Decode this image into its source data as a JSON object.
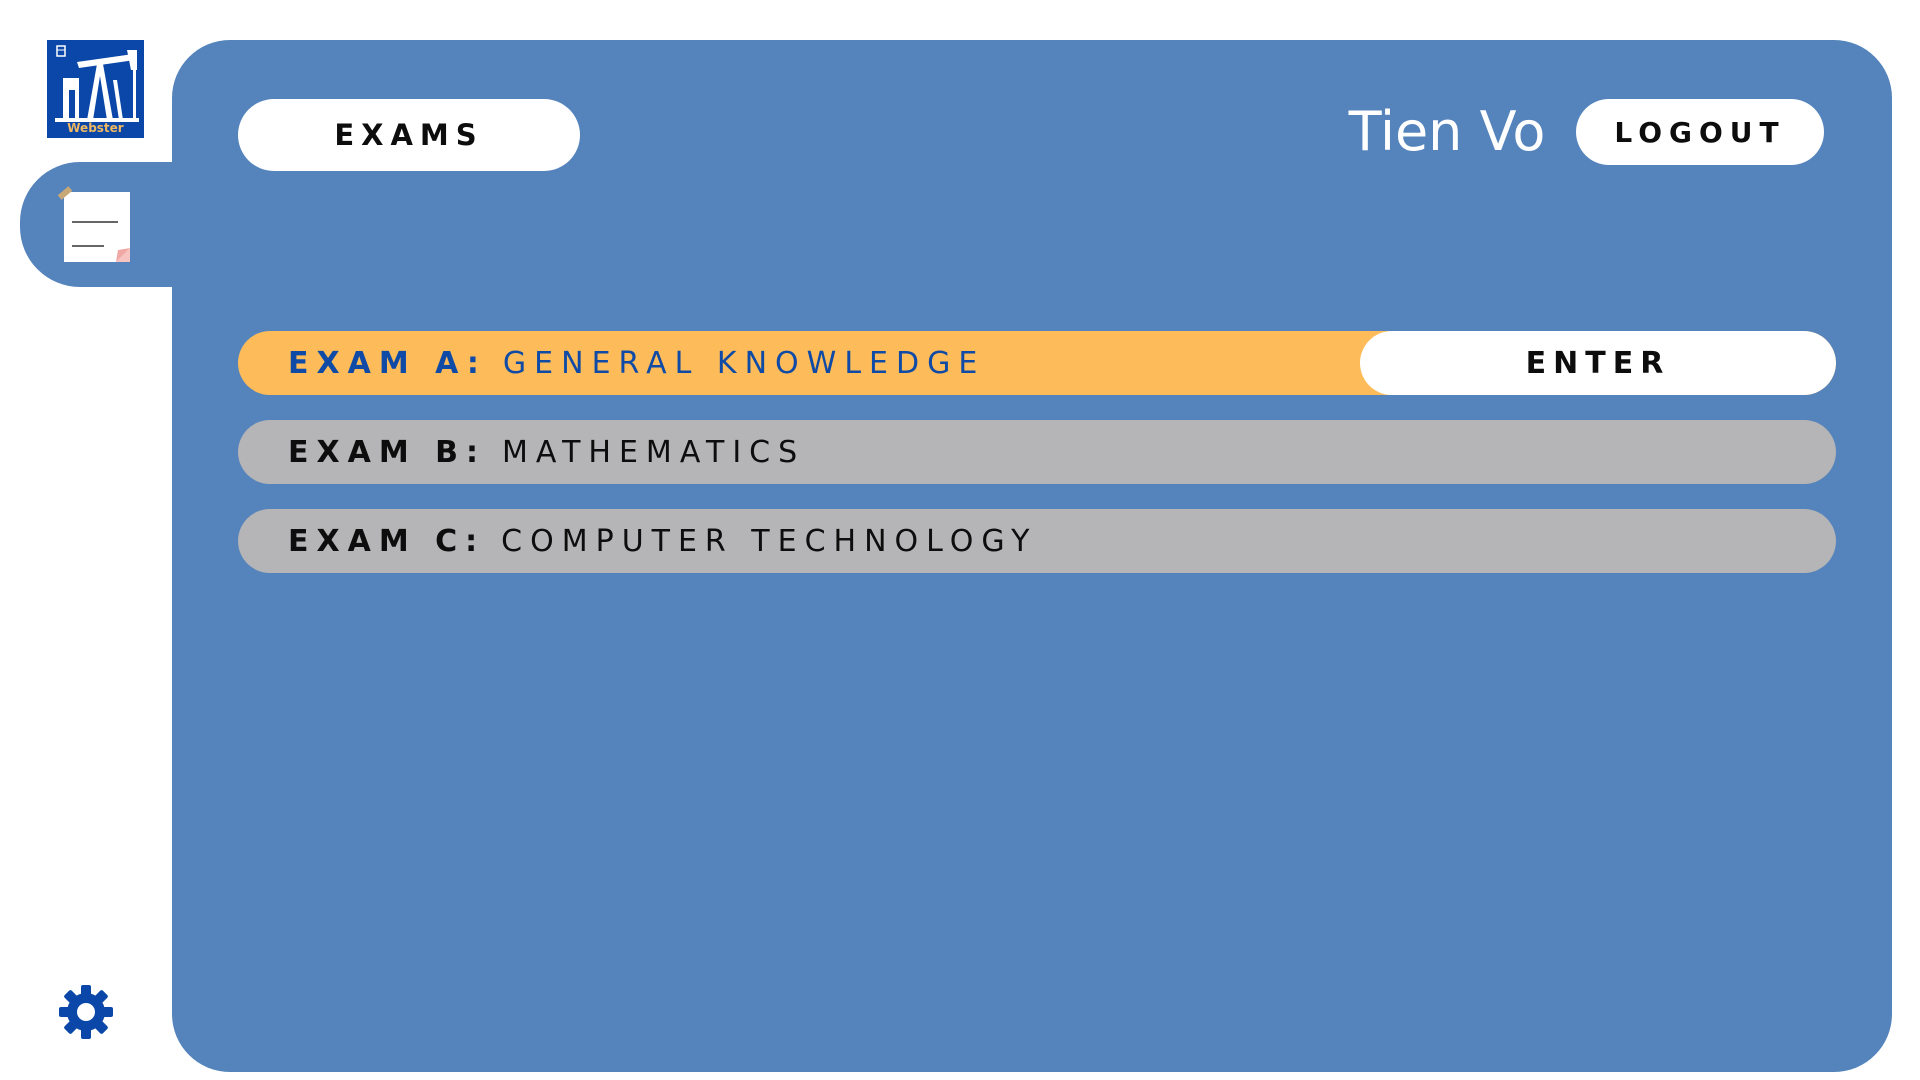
{
  "app": {
    "logo_text": "Webster"
  },
  "header": {
    "exams_label": "EXAMS",
    "user_name": "Tien Vo",
    "logout_label": "LOGOUT"
  },
  "exams": [
    {
      "code": "EXAM A:",
      "title": "GENERAL KNOWLEDGE",
      "enter_label": "ENTER",
      "active": true
    },
    {
      "code": "EXAM B:",
      "title": "MATHEMATICS",
      "active": false
    },
    {
      "code": "EXAM C:",
      "title": "COMPUTER TECHNOLOGY",
      "active": false
    }
  ],
  "icons": {
    "sidebar_active": "note-icon",
    "settings": "gear-icon"
  },
  "colors": {
    "panel": "#5584bc",
    "active_row": "#fdbc59",
    "inactive_row": "#b5b4b6",
    "accent_text": "#0f4ba6",
    "logo_bg": "#0a47a8",
    "logo_text": "#f0b860"
  }
}
